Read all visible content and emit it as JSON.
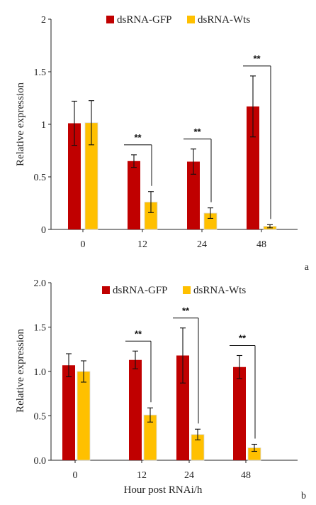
{
  "colors": {
    "gfp": "#c00000",
    "wts": "#ffc000",
    "axis": "#222222"
  },
  "chart_data": [
    {
      "type": "bar",
      "panel_label": "a",
      "categories": [
        "0",
        "12",
        "24",
        "48"
      ],
      "ylabel": "Relative expression",
      "xlabel": "",
      "ylim": [
        0,
        2
      ],
      "yticks": [
        "0",
        "0.5",
        "1",
        "1.5",
        "2"
      ],
      "ytick_values": [
        0,
        0.5,
        1,
        1.5,
        2
      ],
      "legend": {
        "placement": "top-right"
      },
      "series": [
        {
          "name": "dsRNA-GFP",
          "values": [
            1.01,
            0.65,
            0.645,
            1.17
          ],
          "errors": [
            0.21,
            0.06,
            0.12,
            0.29
          ]
        },
        {
          "name": "dsRNA-Wts",
          "values": [
            1.015,
            0.26,
            0.155,
            0.03
          ],
          "errors": [
            0.21,
            0.1,
            0.05,
            0.015
          ]
        }
      ],
      "significance": [
        "",
        "**",
        "**",
        "**"
      ]
    },
    {
      "type": "bar",
      "panel_label": "b",
      "categories": [
        "0",
        "12",
        "24",
        "48"
      ],
      "ylabel": "Relative expression",
      "xlabel": "Hour post RNAi/h",
      "ylim": [
        0,
        2
      ],
      "yticks": [
        "0.0",
        "0.5",
        "1.0",
        "1.5",
        "2.0"
      ],
      "ytick_values": [
        0,
        0.5,
        1,
        1.5,
        2
      ],
      "legend": {
        "placement": "top-right"
      },
      "series": [
        {
          "name": "dsRNA-GFP",
          "values": [
            1.07,
            1.13,
            1.18,
            1.05
          ],
          "errors": [
            0.13,
            0.1,
            0.31,
            0.13
          ]
        },
        {
          "name": "dsRNA-Wts",
          "values": [
            1.0,
            0.51,
            0.29,
            0.14
          ],
          "errors": [
            0.12,
            0.08,
            0.06,
            0.04
          ]
        }
      ],
      "significance": [
        "",
        "**",
        "**",
        "**"
      ]
    }
  ]
}
